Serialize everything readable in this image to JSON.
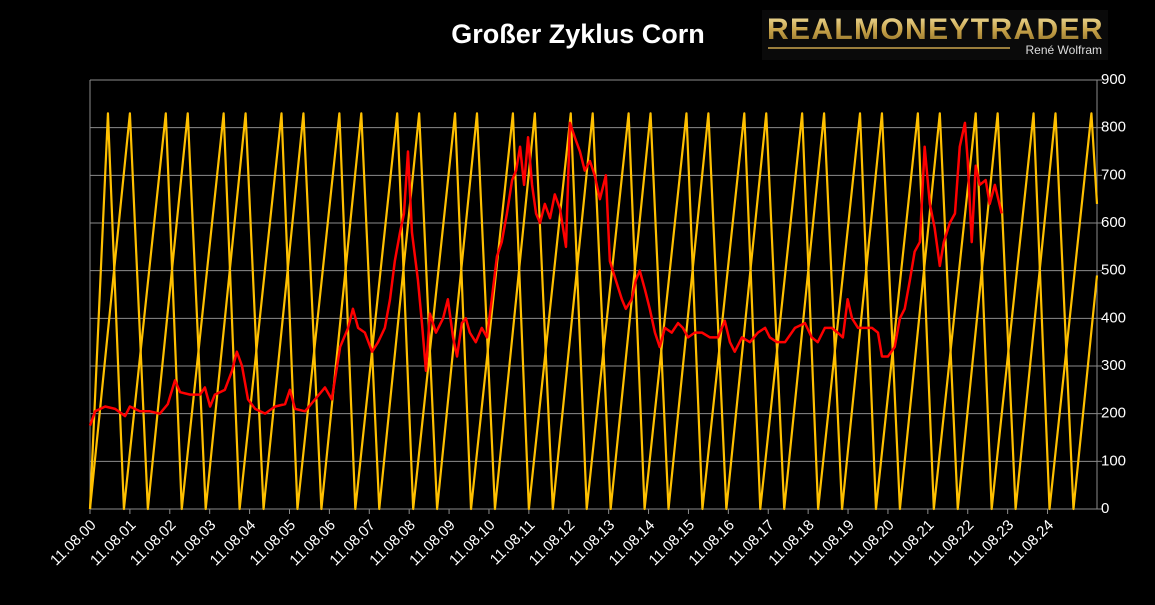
{
  "chart_data": {
    "type": "line",
    "title": "Großer Zyklus Corn",
    "logo": {
      "text": "REALMONEYTRADER",
      "subtitle": "René Wolfram"
    },
    "xlim": [
      2000,
      2025.24
    ],
    "xticks": [
      {
        "value": 2000,
        "label": "11.08.00"
      },
      {
        "value": 2001,
        "label": "11.08.01"
      },
      {
        "value": 2002,
        "label": "11.08.02"
      },
      {
        "value": 2003,
        "label": "11.08.03"
      },
      {
        "value": 2004,
        "label": "11.08.04"
      },
      {
        "value": 2005,
        "label": "11.08.05"
      },
      {
        "value": 2006,
        "label": "11.08.06"
      },
      {
        "value": 2007,
        "label": "11.08.07"
      },
      {
        "value": 2008,
        "label": "11.08.08"
      },
      {
        "value": 2009,
        "label": "11.08.09"
      },
      {
        "value": 2010,
        "label": "11.08.10"
      },
      {
        "value": 2011,
        "label": "11.08.11"
      },
      {
        "value": 2012,
        "label": "11.08.12"
      },
      {
        "value": 2013,
        "label": "11.08.13"
      },
      {
        "value": 2014,
        "label": "11.08.14"
      },
      {
        "value": 2015,
        "label": "11.08.15"
      },
      {
        "value": 2016,
        "label": "11.08.16"
      },
      {
        "value": 2017,
        "label": "11.08.17"
      },
      {
        "value": 2018,
        "label": "11.08.18"
      },
      {
        "value": 2019,
        "label": "11.08.19"
      },
      {
        "value": 2020,
        "label": "11.08.20"
      },
      {
        "value": 2021,
        "label": "11.08.21"
      },
      {
        "value": 2022,
        "label": "11.08.22"
      },
      {
        "value": 2023,
        "label": "11.08.23"
      },
      {
        "value": 2024,
        "label": "11.08.24"
      }
    ],
    "ylim": [
      0,
      900
    ],
    "yticks": [
      0,
      100,
      200,
      300,
      400,
      500,
      600,
      700,
      800,
      900
    ],
    "grid": true,
    "series": [
      {
        "color": "#ffc000",
        "x": [
          2000,
          2001,
          2001.45,
          2002.45,
          2002.9,
          2003.9,
          2004.35,
          2005.35,
          2005.8,
          2006.8,
          2007.25,
          2008.25,
          2008.7,
          2009.7,
          2010.15,
          2011.15,
          2011.6,
          2012.6,
          2013.05,
          2014.05,
          2014.5,
          2015.5,
          2015.95,
          2016.95,
          2017.4,
          2018.4,
          2018.85,
          2019.85,
          2020.3,
          2021.3,
          2021.75,
          2022.75,
          2023.2,
          2024.2,
          2024.65,
          2025.24
        ],
        "values": [
          0,
          830,
          0,
          830,
          0,
          830,
          0,
          830,
          0,
          830,
          0,
          830,
          0,
          830,
          0,
          830,
          0,
          830,
          0,
          830,
          0,
          830,
          0,
          830,
          0,
          830,
          0,
          830,
          0,
          830,
          0,
          830,
          0,
          830,
          0,
          490
        ]
      },
      {
        "color": "#ffc000",
        "x": [
          2000,
          2000.45,
          2000.85,
          2001.9,
          2002.3,
          2003.35,
          2003.75,
          2004.8,
          2005.2,
          2006.25,
          2006.65,
          2007.7,
          2008.1,
          2009.15,
          2009.55,
          2010.6,
          2011.0,
          2012.05,
          2012.45,
          2013.5,
          2013.9,
          2014.95,
          2015.35,
          2016.4,
          2016.8,
          2017.85,
          2018.25,
          2019.3,
          2019.7,
          2020.75,
          2021.15,
          2022.2,
          2022.6,
          2023.65,
          2024.05,
          2025.1,
          2025.24
        ],
        "values": [
          0,
          830,
          0,
          830,
          0,
          830,
          0,
          830,
          0,
          830,
          0,
          830,
          0,
          830,
          0,
          830,
          0,
          830,
          0,
          830,
          0,
          830,
          0,
          830,
          0,
          830,
          0,
          830,
          0,
          830,
          0,
          830,
          0,
          830,
          0,
          830,
          640
        ]
      },
      {
        "color": "#ff0000",
        "x": [
          2000,
          2000.13,
          2000.38,
          2000.63,
          2000.88,
          2001.0,
          2001.25,
          2001.5,
          2001.75,
          2001.95,
          2002.13,
          2002.26,
          2002.51,
          2002.76,
          2002.88,
          2003.01,
          2003.13,
          2003.38,
          2003.56,
          2003.68,
          2003.81,
          2003.96,
          2004.14,
          2004.39,
          2004.64,
          2004.89,
          2005.01,
          2005.14,
          2005.39,
          2005.64,
          2005.89,
          2006.06,
          2006.27,
          2006.47,
          2006.59,
          2006.72,
          2006.89,
          2007.07,
          2007.22,
          2007.39,
          2007.52,
          2007.64,
          2007.77,
          2007.87,
          2007.97,
          2008.07,
          2008.22,
          2008.32,
          2008.42,
          2008.52,
          2008.67,
          2008.85,
          2008.97,
          2009.1,
          2009.2,
          2009.32,
          2009.42,
          2009.52,
          2009.67,
          2009.82,
          2009.95,
          2010.07,
          2010.2,
          2010.32,
          2010.45,
          2010.58,
          2010.68,
          2010.78,
          2010.88,
          2010.98,
          2011.08,
          2011.18,
          2011.28,
          2011.4,
          2011.53,
          2011.65,
          2011.78,
          2011.93,
          2012.03,
          2012.15,
          2012.28,
          2012.4,
          2012.53,
          2012.65,
          2012.78,
          2012.93,
          2013.03,
          2013.18,
          2013.33,
          2013.43,
          2013.58,
          2013.68,
          2013.78,
          2013.91,
          2014.03,
          2014.16,
          2014.28,
          2014.41,
          2014.58,
          2014.74,
          2014.86,
          2014.99,
          2015.16,
          2015.34,
          2015.54,
          2015.74,
          2015.91,
          2016.04,
          2016.16,
          2016.34,
          2016.54,
          2016.74,
          2016.92,
          2017.04,
          2017.22,
          2017.42,
          2017.67,
          2017.92,
          2018.09,
          2018.24,
          2018.42,
          2018.59,
          2018.74,
          2018.87,
          2018.99,
          2019.1,
          2019.25,
          2019.42,
          2019.6,
          2019.75,
          2019.85,
          2020.0,
          2020.17,
          2020.3,
          2020.42,
          2020.55,
          2020.67,
          2020.8,
          2020.92,
          2021.05,
          2021.17,
          2021.3,
          2021.4,
          2021.55,
          2021.68,
          2021.8,
          2021.93,
          2022.0,
          2022.1,
          2022.2,
          2022.3,
          2022.45,
          2022.55,
          2022.68,
          2022.85
        ],
        "values": [
          175,
          205,
          215,
          210,
          195,
          215,
          205,
          205,
          200,
          220,
          270,
          245,
          240,
          240,
          255,
          215,
          240,
          250,
          290,
          330,
          300,
          230,
          210,
          200,
          215,
          220,
          250,
          210,
          205,
          230,
          255,
          230,
          340,
          380,
          420,
          380,
          370,
          330,
          350,
          380,
          440,
          520,
          580,
          620,
          750,
          580,
          480,
          390,
          290,
          410,
          370,
          400,
          440,
          360,
          320,
          390,
          400,
          370,
          350,
          380,
          360,
          440,
          530,
          560,
          620,
          690,
          710,
          760,
          680,
          780,
          680,
          620,
          600,
          640,
          610,
          660,
          630,
          550,
          810,
          780,
          750,
          710,
          730,
          700,
          650,
          700,
          520,
          480,
          440,
          420,
          440,
          480,
          500,
          460,
          420,
          370,
          340,
          380,
          370,
          390,
          380,
          360,
          370,
          370,
          360,
          360,
          395,
          350,
          330,
          360,
          350,
          370,
          380,
          360,
          350,
          350,
          380,
          390,
          360,
          350,
          380,
          380,
          370,
          360,
          440,
          400,
          380,
          380,
          380,
          370,
          320,
          320,
          340,
          400,
          420,
          480,
          540,
          560,
          760,
          640,
          590,
          510,
          560,
          600,
          620,
          760,
          810,
          730,
          560,
          720,
          680,
          690,
          640,
          680,
          620
        ]
      }
    ]
  }
}
